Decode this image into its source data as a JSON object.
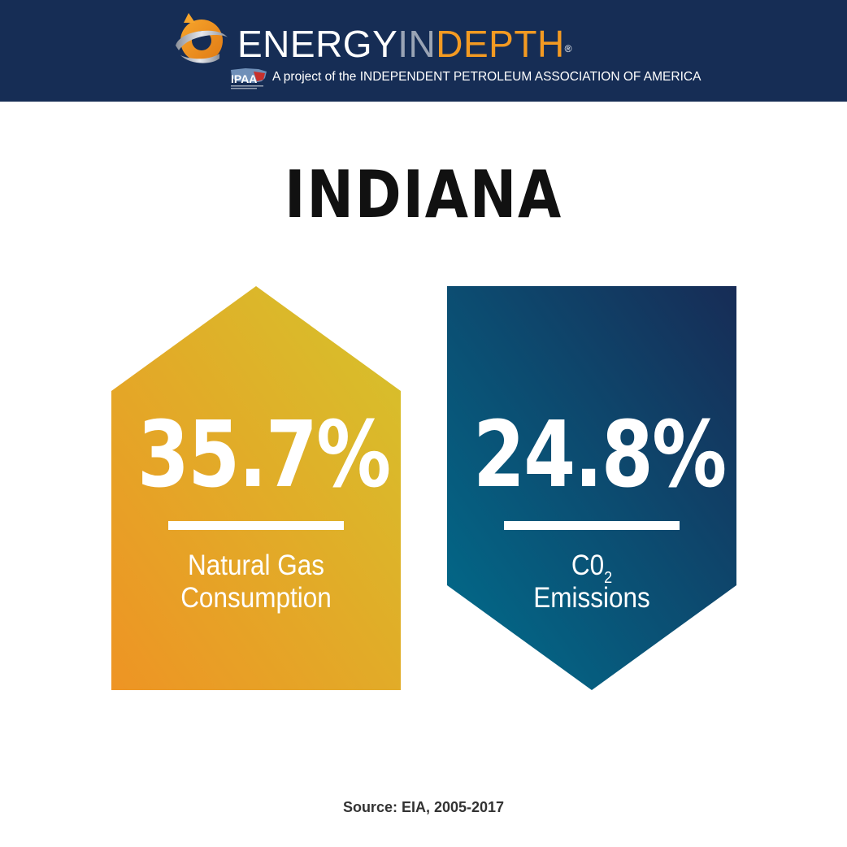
{
  "header": {
    "brand_part1": "ENERGY",
    "brand_part2": "IN",
    "brand_part3": "DEPTH",
    "registered": "®",
    "tagline": "A project of the INDEPENDENT PETROLEUM ASSOCIATION OF AMERICA",
    "ipaa_logo_text": "IPAA"
  },
  "title": "INDIANA",
  "stats": [
    {
      "value": "35.7%",
      "label_line1": "Natural Gas",
      "label_line2": "Consumption",
      "direction": "up",
      "gradient": [
        "#ee9424",
        "#d6bf2c"
      ]
    },
    {
      "value": "24.8%",
      "label_line1": "C0",
      "label_sub": "2",
      "label_line2": "Emissions",
      "direction": "down",
      "gradient": [
        "#006c8a",
        "#17305a"
      ]
    }
  ],
  "source": "Source: EIA, 2005-2017",
  "colors": {
    "header_bg": "#162d55",
    "brand_orange": "#f39a22",
    "brand_grey": "#9aa4b5"
  }
}
